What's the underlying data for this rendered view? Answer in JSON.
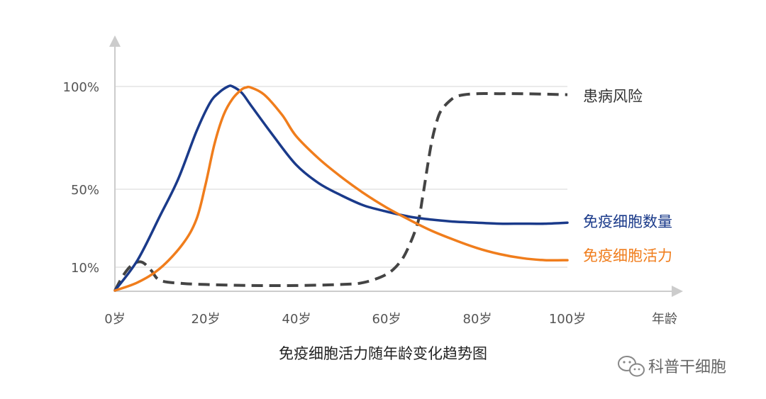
{
  "chart_data": {
    "type": "line",
    "title": "免疫细胞活力随年龄变化趋势图",
    "xlabel": "年龄",
    "ylabel": "",
    "x_ticks": [
      "0岁",
      "20岁",
      "40岁",
      "60岁",
      "80岁",
      "100岁"
    ],
    "y_ticks": [
      "10%",
      "50%",
      "100%"
    ],
    "xlim": [
      0,
      100
    ],
    "ylim": [
      0,
      100
    ],
    "grid": "horizontal",
    "legend": "inline-right",
    "series": [
      {
        "name": "免疫细胞数量",
        "color": "#1a3a8a",
        "style": "solid",
        "x": [
          0,
          5,
          10,
          14,
          18,
          21,
          23,
          25,
          26,
          28,
          30,
          35,
          40,
          45,
          50,
          55,
          60,
          65,
          70,
          75,
          80,
          85,
          90,
          95,
          100
        ],
        "y": [
          0,
          15,
          37,
          55,
          78,
          92,
          97,
          100,
          100,
          97,
          91,
          76,
          62,
          53,
          47,
          42,
          39,
          36.5,
          35,
          34,
          33.5,
          33,
          33,
          33,
          33.5
        ]
      },
      {
        "name": "免疫细胞活力",
        "color": "#f07d1c",
        "style": "solid",
        "x": [
          0,
          5,
          10,
          15,
          18,
          20,
          22,
          24,
          26,
          28,
          29,
          30,
          33,
          37,
          40,
          45,
          50,
          55,
          60,
          65,
          70,
          75,
          80,
          85,
          90,
          95,
          100
        ],
        "y": [
          0,
          4,
          11,
          23,
          35,
          52,
          72,
          86,
          94,
          98.5,
          99.5,
          99.5,
          96,
          86,
          76,
          65,
          56,
          48,
          41,
          35,
          29.5,
          25,
          21,
          18,
          16,
          15,
          15
        ]
      },
      {
        "name": "患病风险",
        "color": "#444444",
        "style": "dashed",
        "x": [
          0,
          2,
          4,
          6,
          8,
          10,
          15,
          20,
          30,
          40,
          50,
          55,
          60,
          63,
          65,
          67,
          68,
          69,
          70,
          71,
          72,
          74,
          76,
          80,
          85,
          90,
          100
        ],
        "y": [
          0,
          8,
          13,
          14,
          10,
          5,
          3.5,
          3,
          2.5,
          2.5,
          3,
          4,
          8,
          14,
          22,
          34,
          46,
          60,
          73,
          82,
          88,
          93,
          95.5,
          96.5,
          96.5,
          96.5,
          96
        ]
      }
    ]
  },
  "watermark": {
    "text": "科普干细胞",
    "icon": "wechat-icon"
  }
}
